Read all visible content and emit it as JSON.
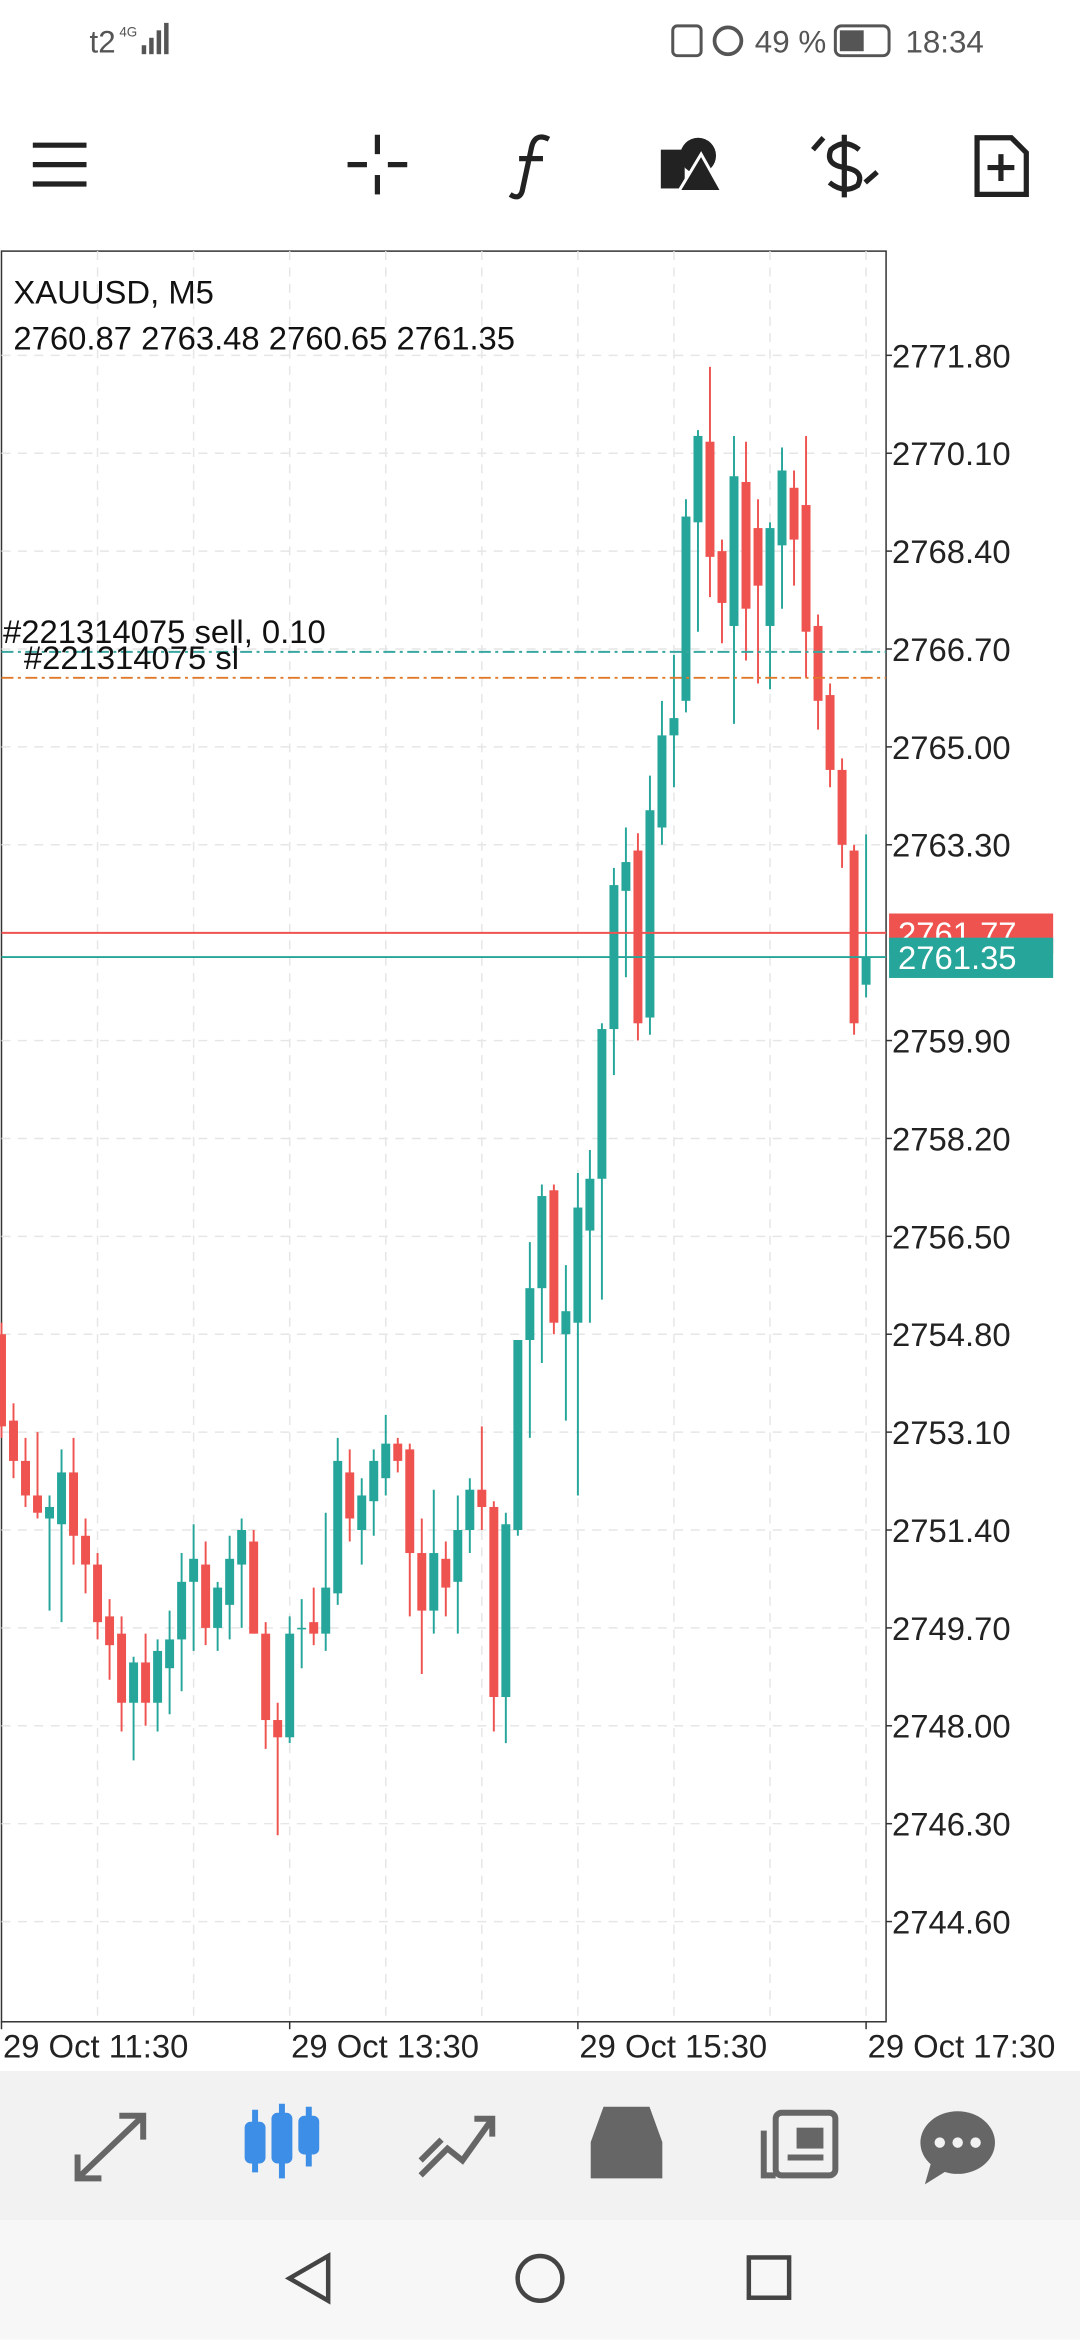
{
  "status_bar": {
    "carrier": "t2",
    "network": "4G",
    "battery": "49 %",
    "time": "18:34"
  },
  "chart_data": {
    "type": "candlestick",
    "title": "XAUUSD, M5",
    "ohlc_header": [
      2760.87,
      2763.48,
      2760.65,
      2761.35
    ],
    "open": [
      2754.8,
      2753.3,
      2752.6,
      2752.0,
      2751.6,
      2751.5,
      2752.4,
      2751.3,
      2750.8,
      2749.9,
      2749.6,
      2748.4,
      2749.1,
      2748.4,
      2749.0,
      2749.5,
      2750.5,
      2750.8,
      2749.7,
      2750.1,
      2750.8,
      2751.2,
      2749.6,
      2748.1,
      2747.8,
      2749.7,
      2749.8,
      2749.6,
      2750.3,
      2752.4,
      2751.4,
      2751.9,
      2752.3,
      2752.9,
      2752.8,
      2751.0,
      2750.0,
      2750.9,
      2750.5,
      2751.4,
      2752.1,
      2751.8,
      2748.5,
      2751.4,
      2754.7,
      2755.6,
      2757.3,
      2754.8,
      2755.0,
      2756.6,
      2757.5,
      2760.1,
      2762.5,
      2763.2,
      2760.3,
      2763.6,
      2765.2,
      2765.8,
      2768.9,
      2770.3,
      2768.4,
      2767.1,
      2769.6,
      2768.8,
      2767.1,
      2768.5,
      2769.5,
      2769.2,
      2767.1,
      2765.9,
      2764.6,
      2763.2,
      2760.87
    ],
    "high": [
      2755.0,
      2753.6,
      2753.0,
      2753.1,
      2752.0,
      2752.8,
      2753.0,
      2751.6,
      2751.0,
      2750.2,
      2749.9,
      2749.2,
      2749.6,
      2749.5,
      2750.0,
      2751.0,
      2751.5,
      2751.2,
      2750.5,
      2751.3,
      2751.6,
      2751.4,
      2749.8,
      2748.4,
      2749.9,
      2750.2,
      2750.4,
      2751.7,
      2753.0,
      2752.8,
      2752.3,
      2752.8,
      2753.4,
      2753.0,
      2752.9,
      2751.6,
      2752.1,
      2751.2,
      2752.0,
      2752.3,
      2753.2,
      2751.9,
      2751.7,
      2754.7,
      2756.4,
      2757.4,
      2757.4,
      2756.0,
      2757.6,
      2758.0,
      2760.2,
      2762.9,
      2763.6,
      2763.5,
      2764.5,
      2765.8,
      2766.6,
      2769.3,
      2770.5,
      2771.6,
      2768.6,
      2770.4,
      2770.3,
      2769.3,
      2768.9,
      2770.2,
      2769.8,
      2770.4,
      2767.3,
      2766.1,
      2764.8,
      2763.3,
      2763.48
    ],
    "low": [
      2753.0,
      2752.3,
      2751.8,
      2751.6,
      2750.0,
      2749.8,
      2750.8,
      2750.3,
      2749.5,
      2748.8,
      2747.9,
      2747.4,
      2748.0,
      2747.9,
      2748.2,
      2748.6,
      2749.3,
      2749.4,
      2749.3,
      2749.5,
      2749.7,
      2749.6,
      2747.6,
      2746.1,
      2747.7,
      2749.0,
      2749.4,
      2749.3,
      2750.1,
      2751.2,
      2750.8,
      2751.3,
      2752.0,
      2752.4,
      2749.9,
      2748.9,
      2749.6,
      2749.9,
      2749.6,
      2751.0,
      2751.4,
      2747.9,
      2747.7,
      2751.3,
      2753.0,
      2754.3,
      2754.8,
      2753.3,
      2752.0,
      2755.0,
      2755.4,
      2759.3,
      2761.0,
      2759.9,
      2760.0,
      2763.3,
      2764.3,
      2765.6,
      2767.0,
      2767.6,
      2766.8,
      2765.4,
      2766.5,
      2766.1,
      2766.0,
      2767.4,
      2767.8,
      2766.2,
      2765.3,
      2764.3,
      2762.9,
      2760.0,
      2760.65
    ],
    "close": [
      2753.2,
      2752.6,
      2752.0,
      2751.7,
      2751.8,
      2752.4,
      2751.3,
      2750.8,
      2749.8,
      2749.4,
      2748.4,
      2749.1,
      2748.4,
      2749.3,
      2749.5,
      2750.5,
      2750.9,
      2749.7,
      2750.4,
      2750.9,
      2751.4,
      2749.6,
      2748.1,
      2747.8,
      2749.6,
      2749.7,
      2749.6,
      2750.4,
      2752.6,
      2751.6,
      2752.0,
      2752.6,
      2752.9,
      2752.6,
      2751.0,
      2750.0,
      2751.0,
      2750.4,
      2751.4,
      2752.1,
      2751.8,
      2748.5,
      2751.5,
      2754.7,
      2755.6,
      2757.2,
      2755.0,
      2755.2,
      2757.0,
      2757.5,
      2760.1,
      2762.6,
      2763.0,
      2760.2,
      2763.9,
      2765.2,
      2765.5,
      2769.0,
      2770.4,
      2768.3,
      2767.5,
      2769.7,
      2767.4,
      2767.8,
      2768.8,
      2769.8,
      2768.6,
      2767.0,
      2765.8,
      2764.6,
      2763.3,
      2760.2,
      2761.35
    ],
    "up_color": "#26a69a",
    "down_color": "#ef5350",
    "ylim": [
      2742.86,
      2773.61
    ],
    "yticks": [
      {
        "value": 2771.8,
        "label": "2771.80"
      },
      {
        "value": 2770.1,
        "label": "2770.10"
      },
      {
        "value": 2768.4,
        "label": "2768.40"
      },
      {
        "value": 2766.7,
        "label": "2766.70"
      },
      {
        "value": 2765.0,
        "label": "2765.00"
      },
      {
        "value": 2763.3,
        "label": "2763.30"
      },
      {
        "value": 2759.9,
        "label": "2759.90"
      },
      {
        "value": 2758.2,
        "label": "2758.20"
      },
      {
        "value": 2756.5,
        "label": "2756.50"
      },
      {
        "value": 2754.8,
        "label": "2754.80"
      },
      {
        "value": 2753.1,
        "label": "2753.10"
      },
      {
        "value": 2751.4,
        "label": "2751.40"
      },
      {
        "value": 2749.7,
        "label": "2749.70"
      },
      {
        "value": 2748.0,
        "label": "2748.00"
      },
      {
        "value": 2746.3,
        "label": "2746.30"
      },
      {
        "value": 2744.6,
        "label": "2744.60"
      }
    ],
    "xticks": [
      {
        "value": 0,
        "label": "29 Oct 11:30"
      },
      {
        "value": 24,
        "label": "29 Oct 13:30"
      },
      {
        "value": 48,
        "label": "29 Oct 15:30"
      },
      {
        "value": 72,
        "label": "29 Oct 17:30"
      }
    ],
    "grid": true,
    "ask": 2761.77,
    "ask_color": "#ef5350",
    "bid": 2761.35,
    "bid_color": "#26a69a",
    "orders": [
      {
        "label": "#221314075 sell, 0.10",
        "price": 2766.65,
        "color": "#3aa6a0"
      },
      {
        "label": "#221314075 sl",
        "price": 2766.2,
        "color": "#e0782a"
      }
    ]
  }
}
